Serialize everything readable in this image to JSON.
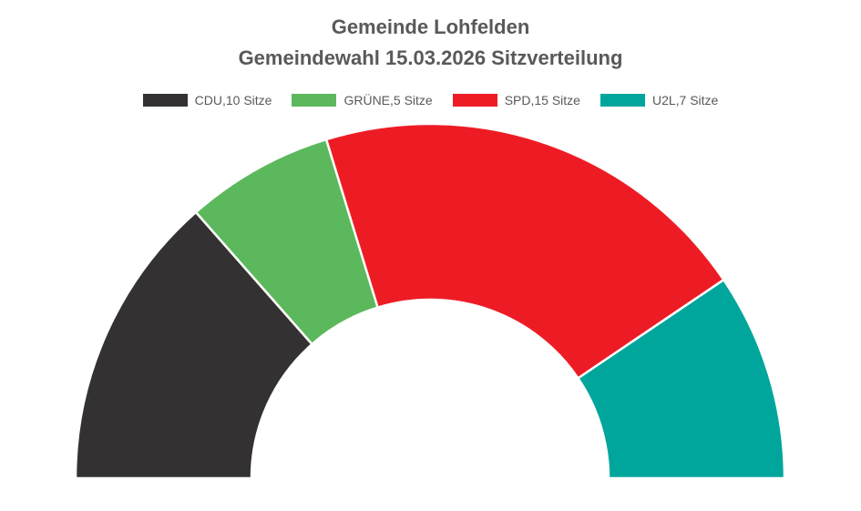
{
  "chart_data": {
    "type": "pie",
    "variant": "semicircle-donut",
    "title": "Gemeinde Lohfelden",
    "subtitle": "Gemeindewahl 15.03.2026 Sitzverteilung",
    "legend_position": "top",
    "series": [
      {
        "name": "CDU",
        "legend_label": "CDU,10 Sitze",
        "value": 10,
        "color": "#333132"
      },
      {
        "name": "GRÜNE",
        "legend_label": "GRÜNE,5 Sitze",
        "value": 5,
        "color": "#5cb85c"
      },
      {
        "name": "SPD",
        "legend_label": "SPD,15 Sitze",
        "value": 15,
        "color": "#ed1c24"
      },
      {
        "name": "U2L",
        "legend_label": "U2L,7 Sitze",
        "value": 7,
        "color": "#00a69c"
      }
    ]
  }
}
